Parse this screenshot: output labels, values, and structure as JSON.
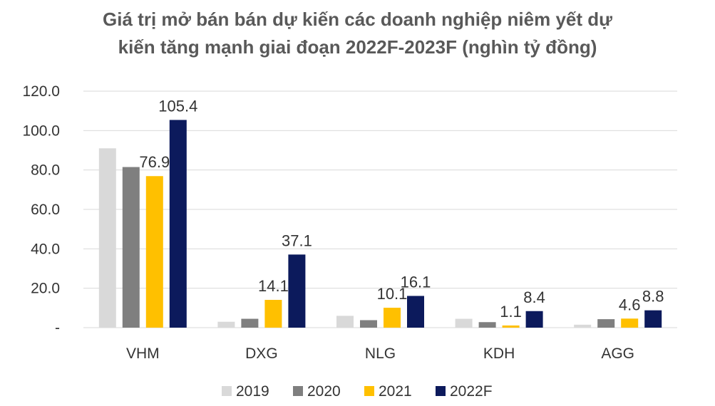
{
  "chart_data": {
    "type": "bar",
    "title_line1": "Giá trị mở bán bán dự kiến các doanh nghiệp niêm yết dự",
    "title_line2": "kiến tăng mạnh giai đoạn 2022F-2023F  (nghìn tỷ đồng)",
    "categories": [
      "VHM",
      "DXG",
      "NLG",
      "KDH",
      "AGG"
    ],
    "series": [
      {
        "name": "2019",
        "color": "#d9d9d9",
        "values": [
          91.0,
          3.0,
          6.0,
          4.5,
          1.5
        ],
        "labels": [
          null,
          null,
          null,
          null,
          null
        ]
      },
      {
        "name": "2020",
        "color": "#7f7f7f",
        "values": [
          81.5,
          4.5,
          3.8,
          2.8,
          4.3
        ],
        "labels": [
          null,
          null,
          null,
          null,
          null
        ]
      },
      {
        "name": "2021",
        "color": "#ffc000",
        "values": [
          76.9,
          14.1,
          10.1,
          1.1,
          4.6
        ],
        "labels": [
          "76.9",
          "14.1",
          "10.1",
          "1.1",
          "4.6"
        ]
      },
      {
        "name": "2022F",
        "color": "#0c1a5c",
        "values": [
          105.4,
          37.1,
          16.1,
          8.4,
          8.8
        ],
        "labels": [
          "105.4",
          "37.1",
          "16.1",
          "8.4",
          "8.8"
        ]
      }
    ],
    "yticks": [
      "-",
      "20.0",
      "40.0",
      "60.0",
      "80.0",
      "100.0",
      "120.0"
    ],
    "ylim": [
      0,
      120
    ],
    "ytick_step": 20,
    "grid": true,
    "legend_position": "bottom"
  }
}
